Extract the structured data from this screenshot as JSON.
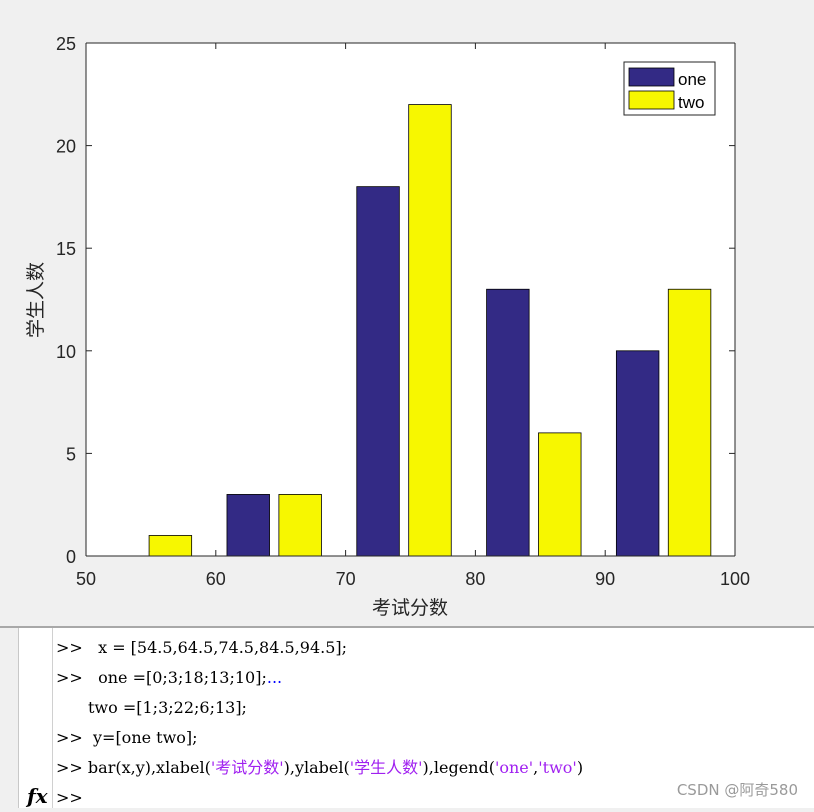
{
  "chart_data": {
    "type": "bar",
    "x": [
      54.5,
      64.5,
      74.5,
      84.5,
      94.5
    ],
    "series": [
      {
        "name": "one",
        "values": [
          0,
          3,
          18,
          13,
          10
        ],
        "color": "#332a85"
      },
      {
        "name": "two",
        "values": [
          1,
          3,
          22,
          6,
          13
        ],
        "color": "#f7f700"
      }
    ],
    "xlabel": "考试分数",
    "ylabel": "学生人数",
    "xlim": [
      50,
      100
    ],
    "ylim": [
      0,
      25
    ],
    "xticks": [
      "50",
      "60",
      "70",
      "80",
      "90",
      "100"
    ],
    "yticks": [
      "0",
      "5",
      "10",
      "15",
      "20",
      "25"
    ],
    "legend_position": "top-right",
    "grid": false
  },
  "command_window": {
    "prompt": ">>",
    "lines": [
      {
        "prompt": ">>",
        "text": "  x = [54.5,64.5,74.5,84.5,94.5];"
      },
      {
        "prompt": ">>",
        "text": "  one =[0;3;18;13;10];",
        "continuation": "..."
      },
      {
        "prompt": "",
        "text": "two =[1;3;22;6;13];"
      },
      {
        "prompt": ">>",
        "text": " y=[one two];"
      },
      {
        "prompt": ">>",
        "code": "bar(x,y),xlabel(",
        "s1": "'考试分数'",
        "code2": "),ylabel(",
        "s2": "'学生人数'",
        "code3": "),legend(",
        "s3": "'one'",
        "comma": ",",
        "s4": "'two'",
        "code4": ")"
      },
      {
        "prompt": ">>",
        "text": ""
      }
    ],
    "fx_icon": "fx-icon"
  },
  "watermark": "CSDN @阿奇580"
}
